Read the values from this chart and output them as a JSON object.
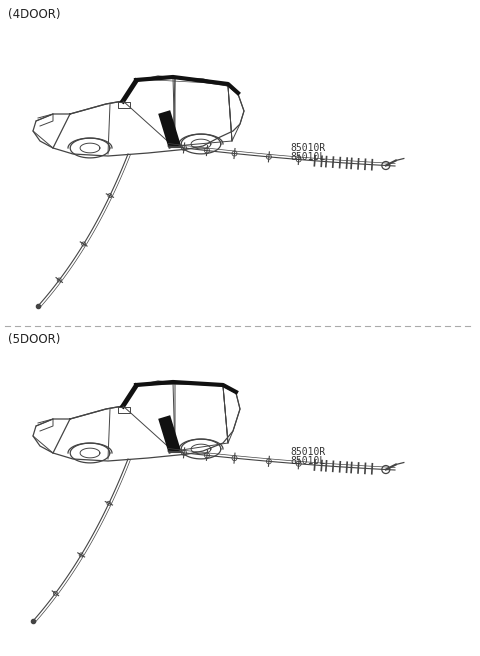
{
  "title_4door": "(4DOOR)",
  "title_5door": "(5DOOR)",
  "part_label_r": "85010R",
  "part_label_l": "85010L",
  "bg_color": "#ffffff",
  "line_color": "#444444",
  "dark_color": "#111111",
  "gray_color": "#888888",
  "figsize": [
    4.8,
    6.56
  ],
  "dpi": 100
}
